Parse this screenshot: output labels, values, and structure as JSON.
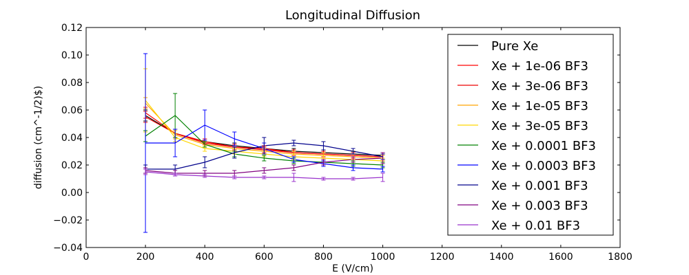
{
  "chart_data": {
    "type": "line",
    "title": "Longitudinal Diffusion",
    "xlabel": "E (V/cm)",
    "ylabel": "diffusion (cm^-1/2)$)",
    "xlim": [
      0,
      1800
    ],
    "ylim": [
      -0.04,
      0.12
    ],
    "xticks": [
      0,
      200,
      400,
      600,
      800,
      1000,
      1200,
      1400,
      1600,
      1800
    ],
    "yticks": [
      -0.04,
      -0.02,
      0.0,
      0.02,
      0.04,
      0.06,
      0.08,
      0.1,
      0.12
    ],
    "xtick_labels": [
      "0",
      "200",
      "400",
      "600",
      "800",
      "1000",
      "1200",
      "1400",
      "1600",
      "1800"
    ],
    "ytick_labels": [
      "−0.04",
      "−0.02",
      "0.00",
      "0.02",
      "0.04",
      "0.06",
      "0.08",
      "0.10",
      "0.12"
    ],
    "grid": false,
    "legend_position": "top-right",
    "x": [
      200,
      300,
      400,
      500,
      600,
      700,
      800,
      900,
      1000
    ],
    "series": [
      {
        "name": "Pure Xe",
        "color": "#000000",
        "values": [
          0.056,
          0.043,
          0.037,
          0.034,
          0.032,
          0.03,
          0.029,
          0.028,
          0.027
        ],
        "errors": [
          0.004,
          0.003,
          0.002,
          0.002,
          0.002,
          0.002,
          0.002,
          0.002,
          0.002
        ]
      },
      {
        "name": "Xe + 1e-06 BF3",
        "color": "#ff0000",
        "values": [
          0.058,
          0.043,
          0.037,
          0.033,
          0.032,
          0.029,
          0.028,
          0.027,
          0.026
        ],
        "errors": [
          0.004,
          0.003,
          0.002,
          0.002,
          0.002,
          0.002,
          0.002,
          0.002,
          0.002
        ]
      },
      {
        "name": "Xe + 3e-06 BF3",
        "color": "#ee0000",
        "values": [
          0.055,
          0.043,
          0.036,
          0.033,
          0.031,
          0.029,
          0.028,
          0.027,
          0.026
        ],
        "errors": [
          0.004,
          0.003,
          0.002,
          0.002,
          0.002,
          0.002,
          0.002,
          0.002,
          0.002
        ]
      },
      {
        "name": "Xe + 1e-05 BF3",
        "color": "#ffa500",
        "values": [
          0.065,
          0.042,
          0.035,
          0.032,
          0.03,
          0.028,
          0.027,
          0.026,
          0.025
        ],
        "errors": [
          0.004,
          0.003,
          0.002,
          0.002,
          0.002,
          0.002,
          0.002,
          0.002,
          0.002
        ]
      },
      {
        "name": "Xe + 3e-05 BF3",
        "color": "#ffd700",
        "values": [
          0.067,
          0.04,
          0.032,
          0.03,
          0.028,
          0.026,
          0.025,
          0.024,
          0.023
        ],
        "errors": [
          0.023,
          0.003,
          0.002,
          0.002,
          0.002,
          0.002,
          0.002,
          0.002,
          0.002
        ]
      },
      {
        "name": "Xe + 0.0001 BF3",
        "color": "#008000",
        "values": [
          0.041,
          0.056,
          0.035,
          0.028,
          0.025,
          0.023,
          0.022,
          0.021,
          0.02
        ],
        "errors": [
          0.004,
          0.016,
          0.002,
          0.002,
          0.002,
          0.002,
          0.002,
          0.002,
          0.002
        ]
      },
      {
        "name": "Xe + 0.0003 BF3",
        "color": "#0000ff",
        "values": [
          0.036,
          0.036,
          0.049,
          0.039,
          0.032,
          0.024,
          0.021,
          0.018,
          0.017
        ],
        "errors": [
          0.065,
          0.01,
          0.011,
          0.005,
          0.004,
          0.002,
          0.002,
          0.002,
          0.002
        ]
      },
      {
        "name": "Xe + 0.001 BF3",
        "color": "#00008b",
        "values": [
          0.017,
          0.017,
          0.022,
          0.029,
          0.034,
          0.036,
          0.034,
          0.03,
          0.026
        ],
        "errors": [
          0.003,
          0.003,
          0.004,
          0.004,
          0.006,
          0.002,
          0.003,
          0.002,
          0.002
        ]
      },
      {
        "name": "Xe + 0.003 BF3",
        "color": "#800080",
        "values": [
          0.016,
          0.014,
          0.014,
          0.014,
          0.016,
          0.018,
          0.022,
          0.024,
          0.025
        ],
        "errors": [
          0.002,
          0.002,
          0.002,
          0.002,
          0.002,
          0.002,
          0.002,
          0.002,
          0.004
        ]
      },
      {
        "name": "Xe + 0.01 BF3",
        "color": "#9932cc",
        "values": [
          0.015,
          0.013,
          0.012,
          0.011,
          0.011,
          0.011,
          0.01,
          0.01,
          0.011
        ],
        "errors": [
          0.002,
          0.001,
          0.001,
          0.001,
          0.001,
          0.003,
          0.001,
          0.001,
          0.003
        ]
      }
    ]
  }
}
